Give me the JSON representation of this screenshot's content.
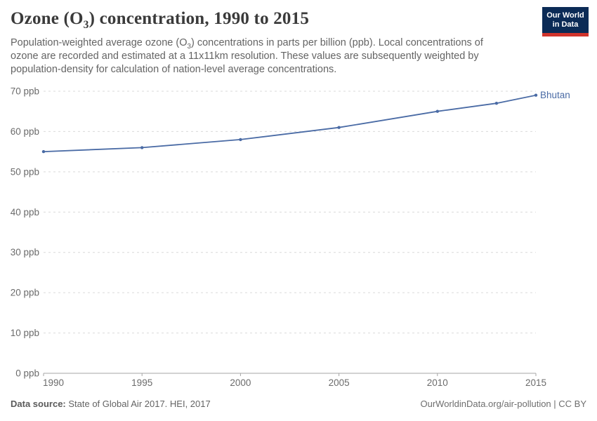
{
  "header": {
    "title_pre": "Ozone (O",
    "title_sub": "3",
    "title_post": ") concentration, 1990 to 2015",
    "subtitle_line1_pre": "Population-weighted average ozone (O",
    "subtitle_line1_sub": "3",
    "subtitle_line1_post": ") concentrations in parts per billion (ppb). Local concentrations of",
    "subtitle_line2": "ozone are recorded and estimated at a 11x11km resolution. These values are subsequently weighted by",
    "subtitle_line3": "population-density for calculation of nation-level average concentrations."
  },
  "logo": {
    "line1": "Our World",
    "line2": "in Data",
    "bg_color": "#0b2b56",
    "stripe_color": "#d0342c"
  },
  "footer": {
    "source_label": "Data source:",
    "source_text": " State of Global Air 2017. HEI, 2017",
    "link_text": "OurWorldinData.org/air-pollution | CC BY"
  },
  "chart_data": {
    "type": "line",
    "title": "Ozone (O3) concentration, 1990 to 2015",
    "x": [
      1990,
      1995,
      2000,
      2005,
      2010,
      2013,
      2015
    ],
    "series": [
      {
        "name": "Bhutan",
        "values": [
          55,
          56,
          58,
          61,
          65,
          67,
          69
        ],
        "color": "#4a6ba5"
      }
    ],
    "xlim": [
      1990,
      2015
    ],
    "ylim": [
      0,
      70
    ],
    "yticks": [
      0,
      10,
      20,
      30,
      40,
      50,
      60,
      70
    ],
    "ytick_suffix": " ppb",
    "xticks": [
      1990,
      1995,
      2000,
      2005,
      2010,
      2015
    ],
    "grid": true,
    "legend_position": "end-of-line-label",
    "colors": {
      "gridline": "#d9d9d9",
      "axis": "#a5a5a5",
      "tick_label": "#6b6b6b"
    }
  }
}
